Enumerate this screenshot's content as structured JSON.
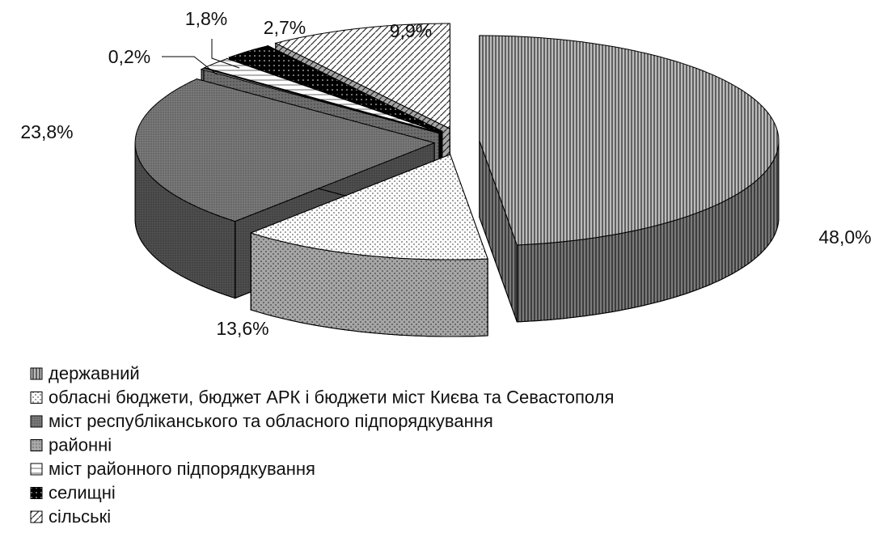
{
  "chart_data": {
    "type": "pie",
    "categories": [
      "державний",
      "обласні бюджети, бюджет АРК і бюджети міст Києва та Севастополя",
      "міст республіканського та обласного підпорядкування",
      "районні",
      "міст районного підпорядкування",
      "селищні",
      "сільські"
    ],
    "values": [
      48.0,
      13.6,
      23.8,
      0.2,
      1.8,
      2.7,
      9.9
    ],
    "value_labels": [
      "48,0%",
      "13,6%",
      "23,8%",
      "0,2%",
      "1,8%",
      "2,7%",
      "9,9%"
    ],
    "colors": [
      "#bdbdbd",
      "#ffffff",
      "#7a7a7a",
      "#a8a8a8",
      "#ffffff",
      "#000000",
      "#ffffff"
    ],
    "legend": "bottom-left"
  }
}
